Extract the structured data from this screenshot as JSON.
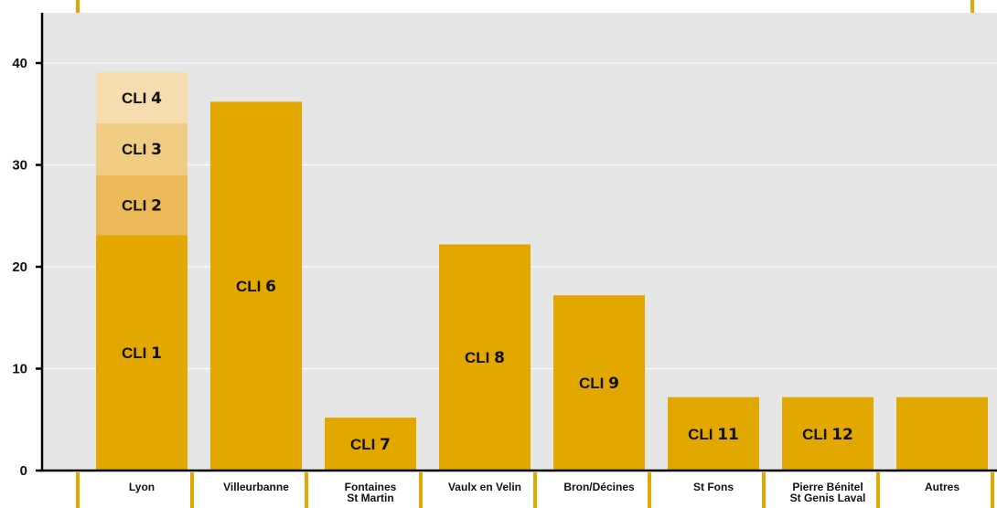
{
  "colors": {
    "background": "#e6e6e6",
    "grid": "#ffffff",
    "axis": "#000000",
    "bar": "#e3a800",
    "accent_tick": "#e3a800",
    "segment_cli2": "#ebb958",
    "segment_cli3": "#f0cc84",
    "segment_cli4": "#f5ddb0"
  },
  "chart_data": {
    "type": "bar",
    "stacked": true,
    "title": "",
    "xlabel": "",
    "ylabel": "",
    "ylim": [
      0,
      45
    ],
    "yticks": [
      0,
      10,
      20,
      30,
      40
    ],
    "grid": true,
    "categories": [
      [
        "Lyon"
      ],
      [
        "Villeurbanne"
      ],
      [
        "Fontaines",
        "St Martin"
      ],
      [
        "Vaulx en Velin"
      ],
      [
        "Bron/Décines"
      ],
      [
        "St Fons"
      ],
      [
        "Pierre Bénitel",
        "St Genis Laval"
      ],
      [
        "Autres"
      ]
    ],
    "bars": [
      {
        "segments": [
          {
            "label_pre": "CLI ",
            "label_num": "1",
            "value": 23.1,
            "color": "#e3a800"
          },
          {
            "label_pre": "CLI ",
            "label_num": "2",
            "value": 5.9,
            "color": "#ebb958"
          },
          {
            "label_pre": "CLI ",
            "label_num": "3",
            "value": 5.1,
            "color": "#f0cc84"
          },
          {
            "label_pre": "CLI ",
            "label_num": "4",
            "value": 5.0,
            "color": "#f5ddb0"
          }
        ]
      },
      {
        "segments": [
          {
            "label_pre": "CLI ",
            "label_num": "6",
            "value": 36.2,
            "color": "#e3a800"
          }
        ]
      },
      {
        "segments": [
          {
            "label_pre": "CLI ",
            "label_num": "7",
            "value": 5.2,
            "color": "#e3a800"
          }
        ]
      },
      {
        "segments": [
          {
            "label_pre": "CLI ",
            "label_num": "8",
            "value": 22.2,
            "color": "#e3a800"
          }
        ]
      },
      {
        "segments": [
          {
            "label_pre": "CLI ",
            "label_num": "9",
            "value": 17.2,
            "color": "#e3a800"
          }
        ]
      },
      {
        "segments": [
          {
            "label_pre": "CLI ",
            "label_num": "11",
            "value": 7.2,
            "color": "#e3a800"
          }
        ]
      },
      {
        "segments": [
          {
            "label_pre": "CLI ",
            "label_num": "12",
            "value": 7.2,
            "color": "#e3a800"
          }
        ]
      },
      {
        "segments": [
          {
            "label_pre": "",
            "label_num": "",
            "value": 7.2,
            "color": "#e3a800"
          }
        ]
      }
    ]
  }
}
